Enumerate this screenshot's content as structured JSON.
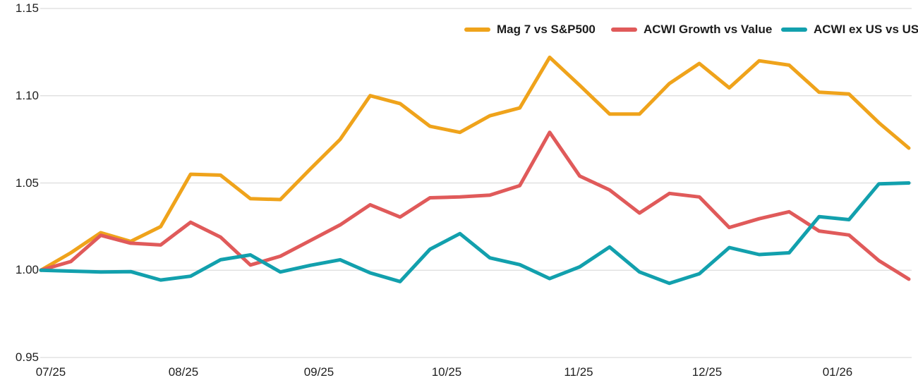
{
  "chart_data": {
    "type": "line",
    "title": "",
    "xlabel": "",
    "ylabel": "",
    "ylim": [
      0.95,
      1.15
    ],
    "grid": "horizontal",
    "legend_position": "top-right",
    "background_color": "#ffffff",
    "gridline_color": "#dcdcdc",
    "text_color": "#1f1f1f",
    "x_tick_labels": [
      "07/25",
      "08/25",
      "09/25",
      "10/25",
      "11/25",
      "12/25",
      "01/26"
    ],
    "y_tick_labels": [
      "0.95",
      "1.00",
      "1.05",
      "1.10",
      "1.15"
    ],
    "x_unit": "week",
    "series": [
      {
        "name": "Mag 7 vs S&P500",
        "color": "#efa31b",
        "values": [
          1.0,
          1.01,
          1.0215,
          1.0165,
          1.025,
          1.055,
          1.0545,
          1.041,
          1.0405,
          1.058,
          1.075,
          1.1,
          1.0955,
          1.0825,
          1.079,
          1.0885,
          1.093,
          1.122,
          1.106,
          1.0895,
          1.0895,
          1.107,
          1.1185,
          1.1045,
          1.12,
          1.1175,
          1.102,
          1.101,
          1.0845,
          1.07
        ]
      },
      {
        "name": "ACWI Growth vs Value",
        "color": "#e05a5a",
        "values": [
          1.0,
          1.005,
          1.02,
          1.0155,
          1.0145,
          1.0275,
          1.019,
          1.003,
          1.008,
          1.017,
          1.026,
          1.0375,
          1.0305,
          1.0415,
          1.042,
          1.043,
          1.0485,
          1.079,
          1.054,
          1.046,
          1.0328,
          1.044,
          1.042,
          1.0245,
          1.0295,
          1.0335,
          1.0225,
          1.0202,
          1.0055,
          0.9949
        ]
      },
      {
        "name": "ACWI ex US vs US",
        "color": "#12a0ad",
        "values": [
          1.0,
          0.9995,
          0.999,
          0.9992,
          0.9944,
          0.9966,
          1.006,
          1.0088,
          0.999,
          1.0028,
          1.006,
          0.9985,
          0.9935,
          1.012,
          1.021,
          1.0071,
          1.0032,
          0.9952,
          1.0019,
          1.0133,
          0.999,
          0.9925,
          0.998,
          1.013,
          1.009,
          1.01,
          1.0307,
          1.029,
          1.0495,
          1.05
        ]
      }
    ]
  }
}
